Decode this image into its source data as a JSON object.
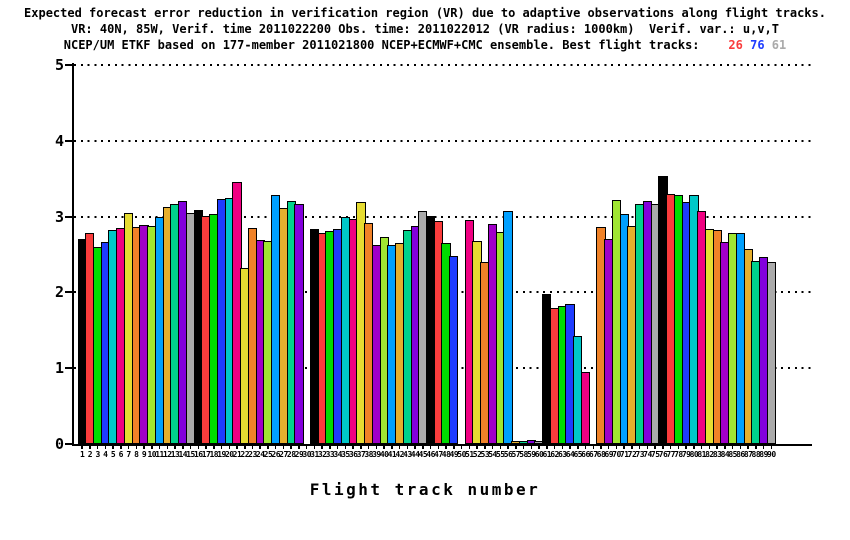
{
  "title": {
    "line1": "Expected forecast error reduction in verification region (VR) due to adaptive observations along flight tracks.",
    "line2": "VR: 40N, 85W, Verif. time 2011022200 Obs. time: 2011022012 (VR radius: 1000km)  Verif. var.: u,v,T",
    "line3_main": "NCEP/UM ETKF based on 177-member 2011021800 NCEP+ECMWF+CMC ensemble. Best flight tracks:",
    "best_tracks": [
      {
        "label": "26",
        "color": "#fa3c3c"
      },
      {
        "label": "76",
        "color": "#1e3cff"
      },
      {
        "label": "61",
        "color": "#aaaaaa"
      }
    ]
  },
  "chart_data": {
    "type": "bar",
    "title": "Expected forecast error reduction in verification region (VR) due to adaptive observations along flight tracks.",
    "xlabel": "Flight track number",
    "ylabel": "",
    "ylim": [
      0,
      5
    ],
    "yticks": [
      0,
      1,
      2,
      3,
      4,
      5
    ],
    "grid": "dotted horizontal gridlines at each integer y value, drawn behind bars",
    "legend": "none",
    "bar_outline_color": "#000000",
    "color_cycle_period": 15,
    "color_cycle": [
      "#000000",
      "#fa3c3c",
      "#00dc00",
      "#1e3cff",
      "#00c8c8",
      "#f00082",
      "#e6dc32",
      "#f08228",
      "#a000c8",
      "#a0e632",
      "#00a0ff",
      "#e6af2d",
      "#00d28c",
      "#8200dc",
      "#aaaaaa"
    ],
    "categories_note": "flight track numbers 1 through 90; null value = no bar drawn for that track",
    "missing_tracks": [
      30,
      50,
      67
    ],
    "values": [
      2.7,
      2.78,
      2.6,
      2.66,
      2.82,
      2.85,
      3.05,
      2.86,
      2.89,
      2.87,
      3.0,
      3.13,
      3.17,
      3.2,
      3.05,
      3.09,
      3.01,
      3.03,
      3.23,
      3.25,
      3.45,
      2.32,
      2.85,
      2.69,
      2.68,
      3.28,
      3.12,
      3.2,
      3.17,
      null,
      2.84,
      2.78,
      2.81,
      2.83,
      3.0,
      2.97,
      3.19,
      2.92,
      2.63,
      2.73,
      2.63,
      2.65,
      2.82,
      2.87,
      3.08,
      3.01,
      2.94,
      2.65,
      2.48,
      null,
      2.96,
      2.68,
      2.4,
      2.9,
      2.8,
      3.08,
      0.04,
      0.04,
      0.05,
      0.04,
      1.98,
      1.79,
      1.82,
      1.85,
      1.42,
      0.95,
      null,
      2.86,
      2.7,
      3.22,
      3.03,
      2.88,
      3.17,
      3.2,
      3.17,
      3.53,
      3.3,
      3.28,
      3.19,
      3.29,
      3.07,
      2.84,
      2.82,
      2.67,
      2.78,
      2.79,
      2.57,
      2.42,
      2.47,
      2.4
    ]
  }
}
